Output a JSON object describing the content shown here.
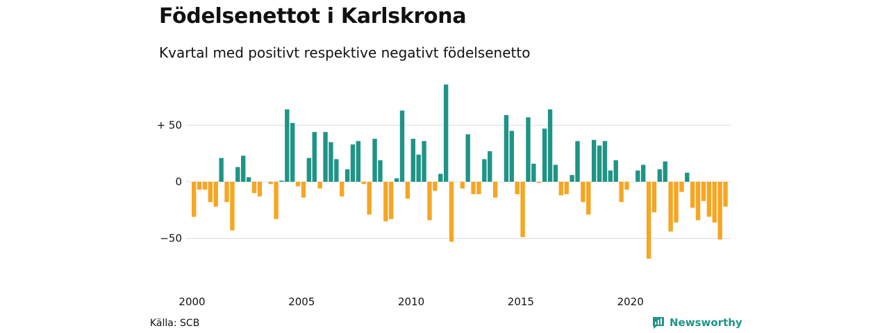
{
  "title": "Födelsenettot i Karlskrona",
  "subtitle": "Kvartal med positivt respektive negativt födelsenetto",
  "source": "Källa: SCB",
  "brand": "Newsworthy",
  "colors": {
    "positive": "#1f9486",
    "negative": "#f5a623",
    "grid": "#dddddd",
    "brand": "#1f9486"
  },
  "chart_data": {
    "type": "bar",
    "start": "2000 Q1",
    "frequency": "quarterly",
    "ylim": [
      -75,
      90
    ],
    "yticks": [
      {
        "value": 50,
        "label": "+ 50"
      },
      {
        "value": 0,
        "label": "0"
      },
      {
        "value": -50,
        "label": "−50"
      }
    ],
    "xtick_labels": [
      "2000",
      "2005",
      "2010",
      "2015",
      "2020"
    ],
    "grid": true,
    "values": [
      -31,
      -7,
      -7,
      -18,
      -22,
      21,
      -18,
      -43,
      13,
      23,
      4,
      -10,
      -13,
      0,
      -2,
      -33,
      1,
      64,
      52,
      -4,
      -14,
      21,
      44,
      -6,
      44,
      35,
      20,
      -13,
      11,
      33,
      36,
      -2,
      -29,
      38,
      19,
      -35,
      -33,
      3,
      63,
      -15,
      38,
      24,
      36,
      -34,
      -8,
      7,
      86,
      -53,
      0,
      -6,
      42,
      -11,
      -11,
      20,
      27,
      -14,
      0,
      59,
      45,
      -11,
      -49,
      57,
      16,
      -1,
      47,
      64,
      15,
      -12,
      -11,
      6,
      36,
      -18,
      -29,
      37,
      32,
      36,
      10,
      19,
      -18,
      -7,
      0,
      10,
      15,
      -68,
      -27,
      11,
      18,
      -44,
      -36,
      -9,
      8,
      -23,
      -34,
      -17,
      -31,
      -36,
      -51,
      -22
    ]
  }
}
